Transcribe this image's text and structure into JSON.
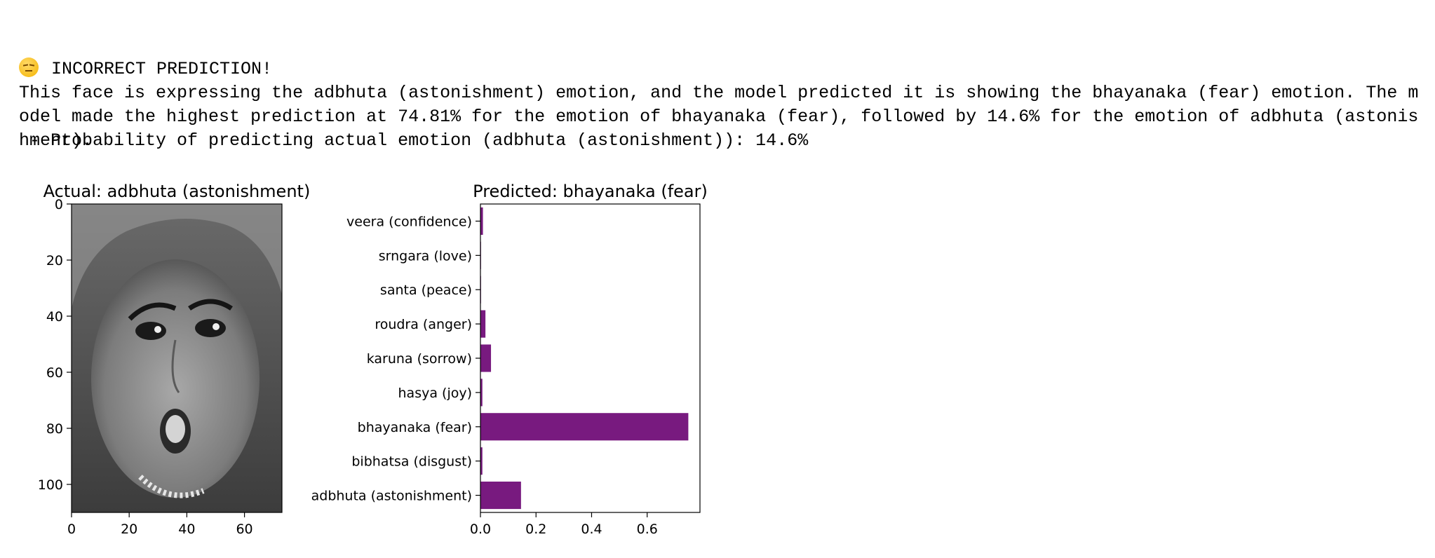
{
  "cell_output": {
    "status_icon": "disappointed-face-emoji",
    "status_text": "INCORRECT PREDICTION!",
    "probability_line": " - Probability of predicting actual emotion (adbhuta (astonishment)): 14.6%",
    "description": "This face is expressing the adbhuta (astonishment) emotion, and the model predicted it is showing the bhayanaka (fear) emotion. The model made the highest prediction at 74.81% for the emotion of bhayanaka (fear), followed by 14.6% for the emotion of adbhuta (astonishment)."
  },
  "chart_data": [
    {
      "type": "image",
      "title": "Actual: adbhuta (astonishment)",
      "image_description": "grayscale face",
      "xlim": [
        0,
        73
      ],
      "ylim": [
        110,
        0
      ],
      "xticks": [
        "0",
        "20",
        "40",
        "60"
      ],
      "yticks": [
        "0",
        "20",
        "40",
        "60",
        "80",
        "100"
      ]
    },
    {
      "type": "bar",
      "orientation": "horizontal",
      "title": "Predicted: bhayanaka (fear)",
      "categories": [
        "adbhuta (astonishment)",
        "bibhatsa (disgust)",
        "bhayanaka (fear)",
        "hasya (joy)",
        "karuna (sorrow)",
        "roudra (anger)",
        "santa (peace)",
        "srngara (love)",
        "veera (confidence)"
      ],
      "values": [
        0.146,
        0.007,
        0.7481,
        0.007,
        0.038,
        0.018,
        0.001,
        0.002,
        0.009
      ],
      "xlim": [
        0,
        0.79
      ],
      "xticks": [
        "0.0",
        "0.2",
        "0.4",
        "0.6"
      ],
      "bar_color": "#781a7f"
    }
  ]
}
